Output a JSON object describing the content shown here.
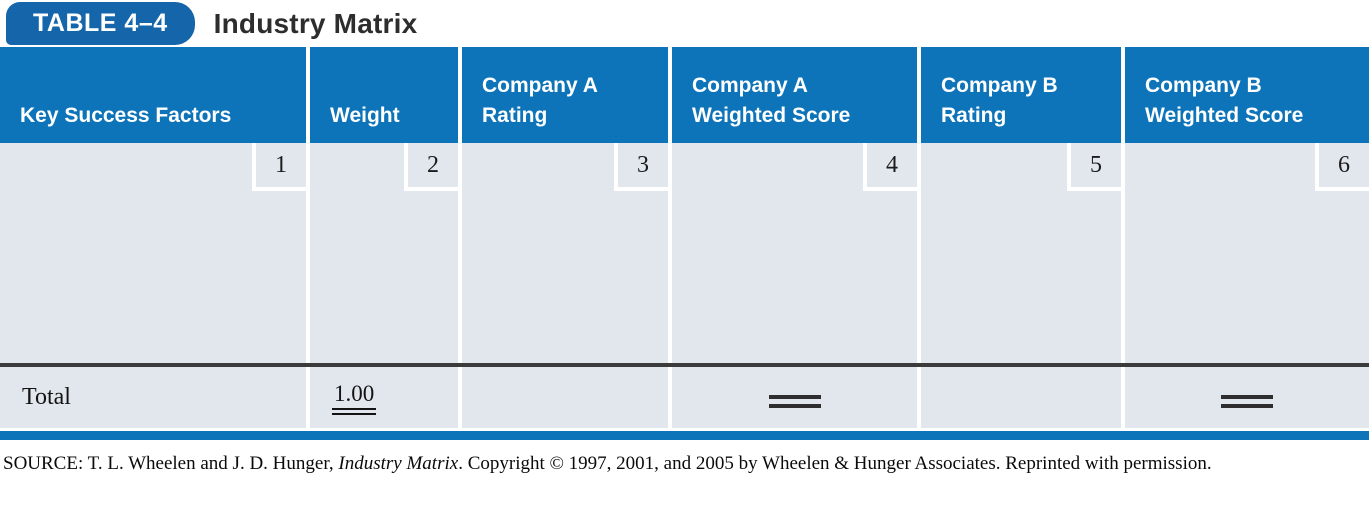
{
  "colors": {
    "tab_blue": "#1565aa",
    "header_blue": "#0e74b9",
    "body_gray": "#e2e7ed",
    "rule_dark": "#3b3b3b",
    "text_dark": "#141414"
  },
  "header": {
    "table_label": "TABLE 4–4",
    "title": "Industry Matrix"
  },
  "table": {
    "columns": [
      {
        "line1": "Key Success Factors",
        "line2": "",
        "number": "1"
      },
      {
        "line1": "Weight",
        "line2": "",
        "number": "2"
      },
      {
        "line1": "Company A",
        "line2": "Rating",
        "number": "3"
      },
      {
        "line1": "Company A",
        "line2": "Weighted Score",
        "number": "4"
      },
      {
        "line1": "Company B",
        "line2": "Rating",
        "number": "5"
      },
      {
        "line1": "Company B",
        "line2": "Weighted Score",
        "number": "6"
      }
    ],
    "totals": {
      "label": "Total",
      "weight_total": "1.00"
    }
  },
  "source": {
    "prefix": "SOURCE: T. L. Wheelen and J. D. Hunger, ",
    "italic": "Industry Matrix",
    "suffix": ". Copyright © 1997, 2001, and 2005 by Wheelen & Hunger Associates. Reprinted with permission."
  }
}
